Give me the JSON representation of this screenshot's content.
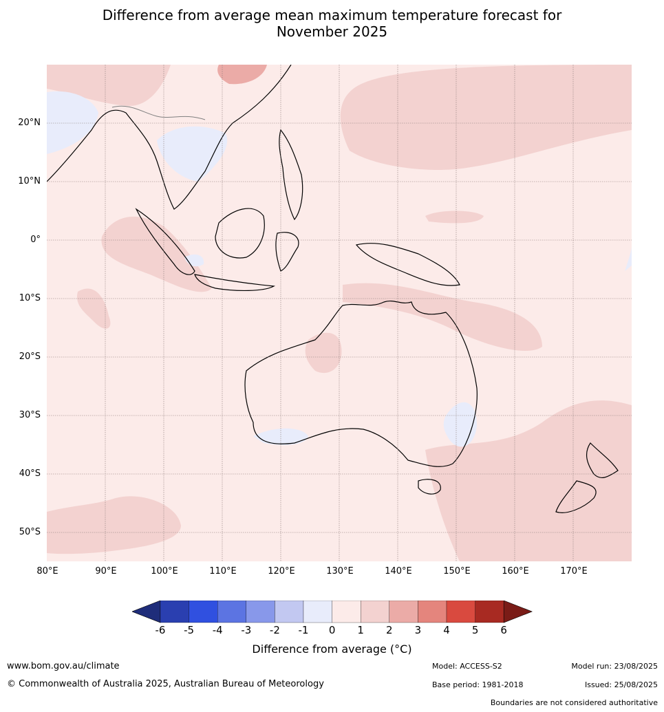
{
  "title_line1": "Difference from average mean maximum temperature forecast for",
  "title_line2": "November 2025",
  "map": {
    "lat_labels": [
      "20°N",
      "10°N",
      "0°",
      "10°S",
      "20°S",
      "30°S",
      "40°S",
      "50°S"
    ],
    "lon_labels": [
      "80°E",
      "90°E",
      "100°E",
      "110°E",
      "120°E",
      "130°E",
      "140°E",
      "150°E",
      "160°E",
      "170°E"
    ],
    "colors": {
      "ocean_base": "#fcebe9",
      "warm1": "#f3d2d0",
      "warm2": "#ebaba7",
      "cool1": "#e8ecfb",
      "cool2": "#c2c8f1",
      "gridline": "#8a7a78",
      "coastline": "#000000",
      "border": "#7f7f7f"
    }
  },
  "colorbar": {
    "ticks": [
      "-6",
      "-5",
      "-4",
      "-3",
      "-2",
      "-1",
      "0",
      "1",
      "2",
      "3",
      "4",
      "5",
      "6"
    ],
    "colors": [
      "#1f2d7a",
      "#2a3fb0",
      "#3050e0",
      "#5c74e2",
      "#8898ea",
      "#c2c8f1",
      "#e8ecfb",
      "#fcebe9",
      "#f3d2d0",
      "#ebaba7",
      "#e4857d",
      "#d94a3f",
      "#a82a22",
      "#7a1c17"
    ],
    "label": "Difference from average (°C)"
  },
  "footer": {
    "website": "www.bom.gov.au/climate",
    "copyright": "© Commonwealth of Australia 2025, Australian Bureau of Meteorology",
    "model": "Model: ACCESS-S2",
    "base_period": "Base period: 1981-2018",
    "model_run": "Model run: 23/08/2025",
    "issued": "Issued: 25/08/2025",
    "disclaimer": "Boundaries are not considered authoritative"
  }
}
